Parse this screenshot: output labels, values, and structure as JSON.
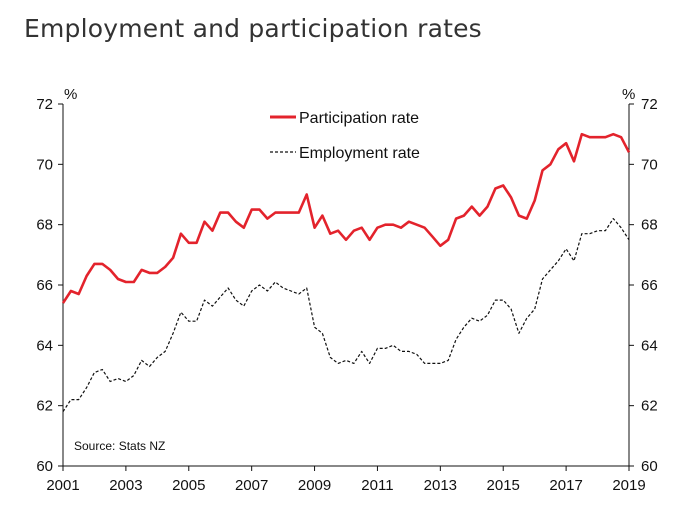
{
  "chart_data": {
    "type": "line",
    "title": "Employment and participation rates",
    "y_unit_left": "%",
    "y_unit_right": "%",
    "source": "Source: Stats NZ",
    "ylim": [
      60,
      72
    ],
    "yticks": [
      "60",
      "62",
      "64",
      "66",
      "68",
      "70",
      "72"
    ],
    "xlim": [
      2001,
      2019
    ],
    "xticks": [
      "2001",
      "2003",
      "2005",
      "2007",
      "2009",
      "2011",
      "2013",
      "2015",
      "2017",
      "2019"
    ],
    "colors": {
      "participation": "#e3232c",
      "employment": "#111111"
    },
    "series": [
      {
        "name": "Participation rate",
        "key": "participation",
        "x": [
          2001.0,
          2001.25,
          2001.5,
          2001.75,
          2002.0,
          2002.25,
          2002.5,
          2002.75,
          2003.0,
          2003.25,
          2003.5,
          2003.75,
          2004.0,
          2004.25,
          2004.5,
          2004.75,
          2005.0,
          2005.25,
          2005.5,
          2005.75,
          2006.0,
          2006.25,
          2006.5,
          2006.75,
          2007.0,
          2007.25,
          2007.5,
          2007.75,
          2008.0,
          2008.25,
          2008.5,
          2008.75,
          2009.0,
          2009.25,
          2009.5,
          2009.75,
          2010.0,
          2010.25,
          2010.5,
          2010.75,
          2011.0,
          2011.25,
          2011.5,
          2011.75,
          2012.0,
          2012.25,
          2012.5,
          2012.75,
          2013.0,
          2013.25,
          2013.5,
          2013.75,
          2014.0,
          2014.25,
          2014.5,
          2014.75,
          2015.0,
          2015.25,
          2015.5,
          2015.75,
          2016.0,
          2016.25,
          2016.5,
          2016.75,
          2017.0,
          2017.25,
          2017.5,
          2017.75,
          2018.0,
          2018.25,
          2018.5,
          2018.75,
          2019.0
        ],
        "values": [
          65.4,
          65.8,
          65.7,
          66.3,
          66.7,
          66.7,
          66.5,
          66.2,
          66.1,
          66.1,
          66.5,
          66.4,
          66.4,
          66.6,
          66.9,
          67.7,
          67.4,
          67.4,
          68.1,
          67.8,
          68.4,
          68.4,
          68.1,
          67.9,
          68.5,
          68.5,
          68.2,
          68.4,
          68.4,
          68.4,
          68.4,
          69.0,
          67.9,
          68.3,
          67.7,
          67.8,
          67.5,
          67.8,
          67.9,
          67.5,
          67.9,
          68.0,
          68.0,
          67.9,
          68.1,
          68.0,
          67.9,
          67.6,
          67.3,
          67.5,
          68.2,
          68.3,
          68.6,
          68.3,
          68.6,
          69.2,
          69.3,
          68.9,
          68.3,
          68.2,
          68.8,
          69.8,
          70.0,
          70.5,
          70.7,
          70.1,
          71.0,
          70.9,
          70.9,
          70.9,
          71.0,
          70.9,
          70.4
        ]
      },
      {
        "name": "Employment rate",
        "key": "employment",
        "x": [
          2001.0,
          2001.25,
          2001.5,
          2001.75,
          2002.0,
          2002.25,
          2002.5,
          2002.75,
          2003.0,
          2003.25,
          2003.5,
          2003.75,
          2004.0,
          2004.25,
          2004.5,
          2004.75,
          2005.0,
          2005.25,
          2005.5,
          2005.75,
          2006.0,
          2006.25,
          2006.5,
          2006.75,
          2007.0,
          2007.25,
          2007.5,
          2007.75,
          2008.0,
          2008.25,
          2008.5,
          2008.75,
          2009.0,
          2009.25,
          2009.5,
          2009.75,
          2010.0,
          2010.25,
          2010.5,
          2010.75,
          2011.0,
          2011.25,
          2011.5,
          2011.75,
          2012.0,
          2012.25,
          2012.5,
          2012.75,
          2013.0,
          2013.25,
          2013.5,
          2013.75,
          2014.0,
          2014.25,
          2014.5,
          2014.75,
          2015.0,
          2015.25,
          2015.5,
          2015.75,
          2016.0,
          2016.25,
          2016.5,
          2016.75,
          2017.0,
          2017.25,
          2017.5,
          2017.75,
          2018.0,
          2018.25,
          2018.5,
          2018.75,
          2019.0
        ],
        "values": [
          61.8,
          62.2,
          62.2,
          62.6,
          63.1,
          63.2,
          62.8,
          62.9,
          62.8,
          63.0,
          63.5,
          63.3,
          63.6,
          63.8,
          64.4,
          65.1,
          64.8,
          64.8,
          65.5,
          65.3,
          65.6,
          65.9,
          65.5,
          65.3,
          65.8,
          66.0,
          65.8,
          66.1,
          65.9,
          65.8,
          65.7,
          65.9,
          64.6,
          64.4,
          63.6,
          63.4,
          63.5,
          63.4,
          63.8,
          63.4,
          63.9,
          63.9,
          64.0,
          63.8,
          63.8,
          63.7,
          63.4,
          63.4,
          63.4,
          63.5,
          64.2,
          64.6,
          64.9,
          64.8,
          65.0,
          65.5,
          65.5,
          65.2,
          64.4,
          64.9,
          65.2,
          66.2,
          66.5,
          66.8,
          67.2,
          66.8,
          67.7,
          67.7,
          67.8,
          67.8,
          68.2,
          67.9,
          67.5
        ]
      }
    ]
  }
}
